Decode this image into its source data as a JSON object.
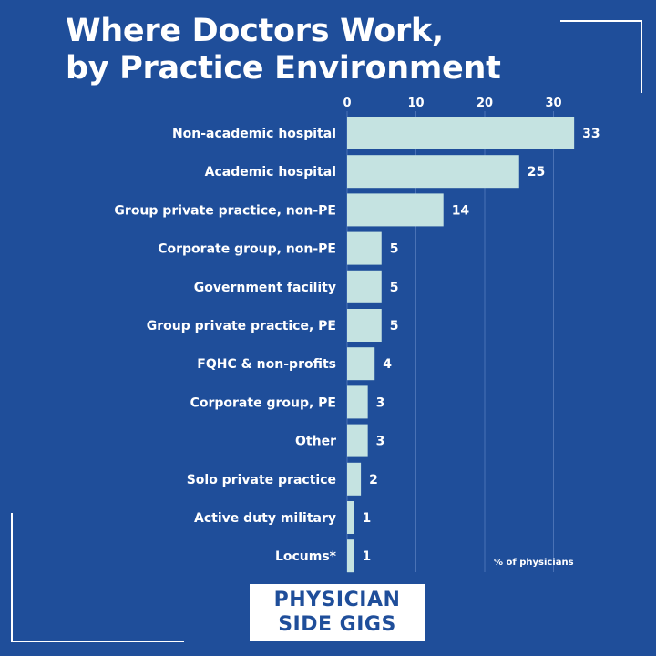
{
  "title_line1": "Where Doctors Work,",
  "title_line2": "by Practice Environment",
  "logo": {
    "line1": "PHYSICIAN",
    "line2": "SIDE GIGS"
  },
  "colors": {
    "background": "#1f4e9a",
    "bar": "#c5e3e1",
    "text": "#ffffff",
    "grid": "#4a72b5"
  },
  "chart_data": {
    "type": "bar",
    "orientation": "horizontal",
    "title": "Where Doctors Work, by Practice Environment",
    "xlabel": "% of physicians",
    "ylabel": "",
    "xlim": [
      0,
      34
    ],
    "xticks": [
      0,
      10,
      20,
      30
    ],
    "grid": true,
    "categories": [
      "Non-academic hospital",
      "Academic hospital",
      "Group private practice, non-PE",
      "Corporate group, non-PE",
      "Government facility",
      "Group private practice, PE",
      "FQHC & non-profits",
      "Corporate group, PE",
      "Other",
      "Solo private practice",
      "Active duty military",
      "Locums*"
    ],
    "values": [
      33,
      25,
      14,
      5,
      5,
      5,
      4,
      3,
      3,
      2,
      1,
      1
    ]
  }
}
